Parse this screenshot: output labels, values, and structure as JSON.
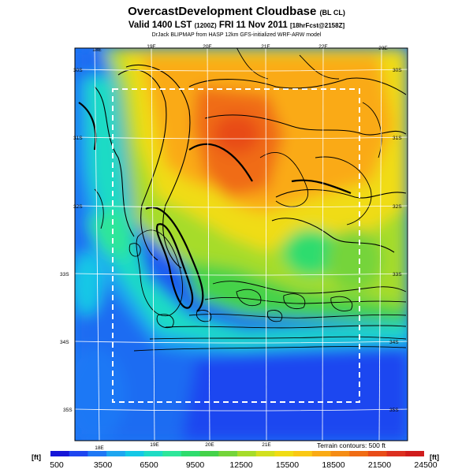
{
  "title": {
    "main": "OvercastDevelopment Cloudbase",
    "main_suffix": "(BL CL)",
    "valid_prefix": "Valid 1400 LST",
    "valid_code": "(1200Z)",
    "valid_date": "FRI 11 Nov 2011",
    "valid_suffix": "[18hrFcst@2158Z]",
    "source": "DrJack BLIPMAP from HASP 12km GFS-initialized WRF-ARW model"
  },
  "map": {
    "lon_labels_top": [
      "18E",
      "19E",
      "20E",
      "21E",
      "22E",
      "23E"
    ],
    "lon_labels_bottom": [
      "18E",
      "19E",
      "20E",
      "21E"
    ],
    "lat_labels_left": [
      "30S",
      "31S",
      "32S",
      "33S",
      "34S",
      "35S"
    ],
    "lat_labels_right": [
      "30S",
      "31S",
      "32S",
      "33S",
      "34S",
      "35S"
    ],
    "terrain_note": "Terrain contours: 500 ft"
  },
  "colorbar": {
    "unit_left": "[ft]",
    "unit_right": "[ft]",
    "labels": [
      "500",
      "3500",
      "6500",
      "9500",
      "12500",
      "15500",
      "18500",
      "21500",
      "24500"
    ],
    "colors": [
      "#1616d8",
      "#1e46f0",
      "#1f78f5",
      "#1ea6f0",
      "#14c8e6",
      "#1edcc4",
      "#2ee69a",
      "#2edc6e",
      "#44d24a",
      "#74d43a",
      "#a6dc2a",
      "#d2e01e",
      "#f0dc14",
      "#fac814",
      "#faaa14",
      "#f58c14",
      "#f06c14",
      "#e84c18",
      "#dc3020",
      "#d01c1c"
    ]
  }
}
